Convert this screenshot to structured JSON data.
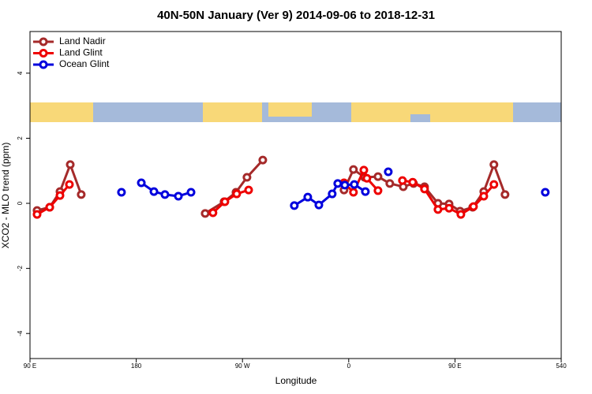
{
  "chart_data": {
    "type": "line",
    "title": "40N-50N January (Ver 9)   2014-09-06 to 2018-12-31",
    "xlabel": "Longitude",
    "ylabel": "XCO2 - MLO trend (ppm)",
    "xlim": [
      90,
      540
    ],
    "ylim": [
      -4.77,
      5.28
    ],
    "xticks": [
      {
        "value": 90,
        "label": "90 E"
      },
      180,
      {
        "value": 270,
        "label": "90 W"
      },
      {
        "value": 360,
        "label": "0"
      },
      {
        "value": 450,
        "label": "90 E"
      },
      540
    ],
    "yticks": [
      -4,
      -2,
      0,
      2,
      4
    ],
    "legend": "upper left",
    "series": [
      {
        "name": "Land Nadir",
        "color": "#a52a2a",
        "x": [
          96,
          106.7,
          115.4,
          124.1,
          133.4,
          null,
          238.4,
          254.4,
          264.5,
          273.8,
          287.2,
          null,
          356,
          364,
          373.4,
          384.8,
          394.8,
          406.2,
          414.9,
          424.2,
          435.6,
          445,
          454.3,
          465,
          474.4,
          483,
          492.4
        ],
        "values": [
          -0.22,
          -0.12,
          0.36,
          1.19,
          0.27,
          null,
          -0.31,
          0.05,
          0.34,
          0.8,
          1.33,
          null,
          0.41,
          1.04,
          0.8,
          0.82,
          0.61,
          0.51,
          0.61,
          0.51,
          0.0,
          -0.02,
          -0.24,
          -0.12,
          0.36,
          1.19,
          0.27
        ]
      },
      {
        "name": "Land Glint",
        "color": "#ee0000",
        "x": [
          96,
          106.7,
          115.4,
          123.4,
          null,
          245,
          255.1,
          265.1,
          275.2,
          null,
          356,
          364,
          372.8,
          375.4,
          384.8,
          null,
          405.5,
          414.2,
          424.2,
          435.6,
          445,
          455,
          465.7,
          474.4,
          483
        ],
        "values": [
          -0.34,
          -0.12,
          0.24,
          0.58,
          null,
          -0.29,
          0.05,
          0.29,
          0.41,
          null,
          0.63,
          0.34,
          1.02,
          0.77,
          0.39,
          null,
          0.7,
          0.65,
          0.44,
          -0.19,
          -0.15,
          -0.34,
          -0.1,
          0.22,
          0.58
        ]
      },
      {
        "name": "Ocean Glint",
        "color": "#0000dd",
        "x": [
          167.5,
          null,
          184.3,
          195,
          204.3,
          215.7,
          226.4,
          null,
          313.9,
          325.3,
          334.7,
          346,
          350.7,
          356.7,
          364.7,
          374.1,
          null,
          393.5,
          null,
          526.5
        ],
        "values": [
          0.34,
          null,
          0.63,
          0.36,
          0.27,
          0.22,
          0.34,
          null,
          -0.07,
          0.19,
          -0.05,
          0.29,
          0.61,
          0.56,
          0.58,
          0.36,
          null,
          0.97,
          null,
          0.34
        ]
      }
    ]
  }
}
